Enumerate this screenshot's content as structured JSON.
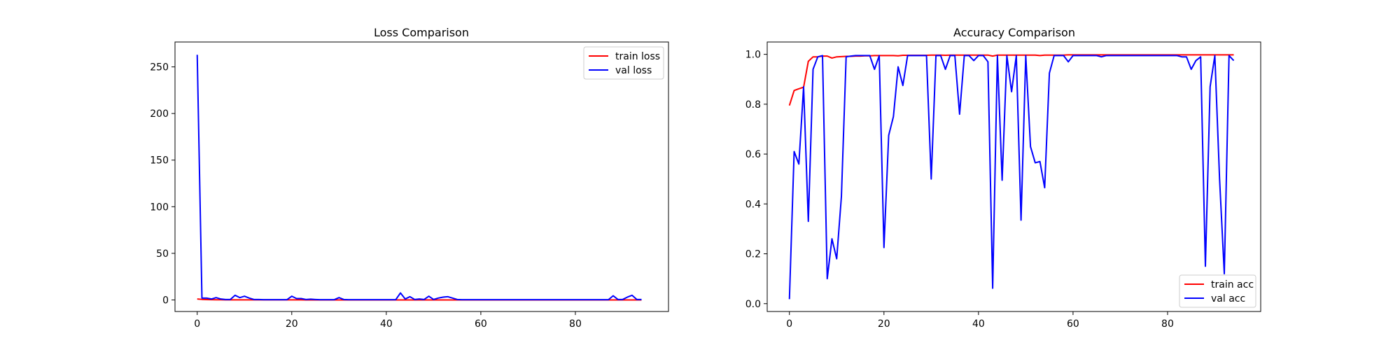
{
  "chart_data": [
    {
      "type": "line",
      "title": "Loss Comparison",
      "xlabel": "",
      "ylabel": "",
      "xlim": [
        -4.7,
        99.7
      ],
      "ylim": [
        -12.4,
        276.7
      ],
      "xticks": [
        0,
        20,
        40,
        60,
        80
      ],
      "yticks": [
        0,
        50,
        100,
        150,
        200,
        250
      ],
      "grid": false,
      "legend_position": "top-right",
      "series": [
        {
          "name": "train loss",
          "color": "#ff0000",
          "x": [
            0,
            1,
            2,
            3,
            4,
            5,
            6,
            7,
            8,
            9,
            10,
            11,
            12,
            13,
            14,
            15,
            16,
            17,
            18,
            19,
            20,
            21,
            22,
            23,
            24,
            25,
            26,
            27,
            28,
            29,
            30,
            31,
            32,
            33,
            34,
            35,
            36,
            37,
            38,
            39,
            40,
            41,
            42,
            43,
            44,
            45,
            46,
            47,
            48,
            49,
            50,
            51,
            52,
            53,
            54,
            55,
            56,
            57,
            58,
            59,
            60,
            61,
            62,
            63,
            64,
            65,
            66,
            67,
            68,
            69,
            70,
            71,
            72,
            73,
            74,
            75,
            76,
            77,
            78,
            79,
            80,
            81,
            82,
            83,
            84,
            85,
            86,
            87,
            88,
            89,
            90,
            91,
            92,
            93,
            94
          ],
          "values": [
            1.0,
            0.6,
            0.4,
            0.3,
            0.2,
            0.15,
            0.1,
            0.1,
            0.1,
            0.08,
            0.08,
            0.07,
            0.06,
            0.06,
            0.05,
            0.05,
            0.05,
            0.05,
            0.04,
            0.04,
            0.04,
            0.04,
            0.04,
            0.03,
            0.03,
            0.03,
            0.03,
            0.03,
            0.03,
            0.03,
            0.03,
            0.02,
            0.02,
            0.02,
            0.02,
            0.02,
            0.02,
            0.02,
            0.02,
            0.02,
            0.02,
            0.02,
            0.02,
            0.02,
            0.02,
            0.02,
            0.02,
            0.02,
            0.02,
            0.02,
            0.02,
            0.02,
            0.02,
            0.02,
            0.02,
            0.02,
            0.02,
            0.02,
            0.02,
            0.02,
            0.01,
            0.01,
            0.01,
            0.01,
            0.01,
            0.01,
            0.01,
            0.01,
            0.01,
            0.01,
            0.01,
            0.01,
            0.01,
            0.01,
            0.01,
            0.01,
            0.01,
            0.01,
            0.01,
            0.01,
            0.01,
            0.01,
            0.01,
            0.01,
            0.01,
            0.01,
            0.01,
            0.01,
            0.01,
            0.01,
            0.01,
            0.01,
            0.01,
            0.01,
            0.01
          ]
        },
        {
          "name": "val loss",
          "color": "#0000ff",
          "x": [
            0,
            1,
            2,
            3,
            4,
            5,
            6,
            7,
            8,
            9,
            10,
            11,
            12,
            13,
            14,
            15,
            16,
            17,
            18,
            19,
            20,
            21,
            22,
            23,
            24,
            25,
            26,
            27,
            28,
            29,
            30,
            31,
            32,
            33,
            34,
            35,
            36,
            37,
            38,
            39,
            40,
            41,
            42,
            43,
            44,
            45,
            46,
            47,
            48,
            49,
            50,
            51,
            52,
            53,
            54,
            55,
            56,
            57,
            58,
            59,
            60,
            61,
            62,
            63,
            64,
            65,
            66,
            67,
            68,
            69,
            70,
            71,
            72,
            73,
            74,
            75,
            76,
            77,
            78,
            79,
            80,
            81,
            82,
            83,
            84,
            85,
            86,
            87,
            88,
            89,
            90,
            91,
            92,
            93,
            94
          ],
          "values": [
            263,
            2,
            2,
            1,
            2.5,
            1,
            0.5,
            0.5,
            5,
            2.5,
            4,
            2,
            0.5,
            0.5,
            0.3,
            0.3,
            0.3,
            0.3,
            0.3,
            0.3,
            4,
            1.5,
            1.5,
            0.5,
            0.8,
            0.5,
            0.3,
            0.3,
            0.3,
            0.3,
            2.5,
            0.5,
            0.3,
            0.3,
            0.3,
            0.3,
            0.3,
            0.3,
            0.3,
            0.3,
            0.3,
            0.3,
            0.3,
            7.5,
            1,
            3.5,
            0.5,
            1,
            0.5,
            4,
            0.5,
            2,
            3,
            3.5,
            2,
            0.5,
            0.3,
            0.3,
            0.3,
            0.3,
            0.3,
            0.3,
            0.3,
            0.3,
            0.3,
            0.3,
            0.3,
            0.3,
            0.3,
            0.3,
            0.3,
            0.3,
            0.3,
            0.3,
            0.3,
            0.3,
            0.3,
            0.3,
            0.3,
            0.3,
            0.3,
            0.3,
            0.3,
            0.3,
            0.3,
            0.3,
            0.3,
            0.3,
            4.5,
            0.5,
            0.5,
            3,
            5,
            0.5,
            0.5
          ]
        }
      ]
    },
    {
      "type": "line",
      "title": "Accuracy Comparison",
      "xlabel": "",
      "ylabel": "",
      "xlim": [
        -4.7,
        99.7
      ],
      "ylim": [
        -0.0315,
        1.0495
      ],
      "xticks": [
        0,
        20,
        40,
        60,
        80
      ],
      "yticks": [
        0.0,
        0.2,
        0.4,
        0.6,
        0.8,
        1.0
      ],
      "grid": false,
      "legend_position": "bottom-right",
      "series": [
        {
          "name": "train acc",
          "color": "#ff0000",
          "x": [
            0,
            1,
            2,
            3,
            4,
            5,
            6,
            7,
            8,
            9,
            10,
            11,
            12,
            13,
            14,
            15,
            16,
            17,
            18,
            19,
            20,
            21,
            22,
            23,
            24,
            25,
            26,
            27,
            28,
            29,
            30,
            31,
            32,
            33,
            34,
            35,
            36,
            37,
            38,
            39,
            40,
            41,
            42,
            43,
            44,
            45,
            46,
            47,
            48,
            49,
            50,
            51,
            52,
            53,
            54,
            55,
            56,
            57,
            58,
            59,
            60,
            61,
            62,
            63,
            64,
            65,
            66,
            67,
            68,
            69,
            70,
            71,
            72,
            73,
            74,
            75,
            76,
            77,
            78,
            79,
            80,
            81,
            82,
            83,
            84,
            85,
            86,
            87,
            88,
            89,
            90,
            91,
            92,
            93,
            94
          ],
          "values": [
            0.795,
            0.855,
            0.862,
            0.868,
            0.972,
            0.99,
            0.99,
            0.993,
            0.993,
            0.985,
            0.99,
            0.991,
            0.992,
            0.992,
            0.993,
            0.993,
            0.994,
            0.994,
            0.995,
            0.995,
            0.995,
            0.995,
            0.995,
            0.994,
            0.996,
            0.996,
            0.996,
            0.996,
            0.996,
            0.996,
            0.997,
            0.997,
            0.997,
            0.996,
            0.997,
            0.997,
            0.997,
            0.997,
            0.997,
            0.997,
            0.997,
            0.997,
            0.997,
            0.993,
            0.997,
            0.997,
            0.997,
            0.997,
            0.997,
            0.997,
            0.997,
            0.997,
            0.997,
            0.995,
            0.997,
            0.997,
            0.997,
            0.997,
            0.997,
            0.998,
            0.998,
            0.998,
            0.998,
            0.998,
            0.998,
            0.998,
            0.998,
            0.998,
            0.998,
            0.998,
            0.998,
            0.998,
            0.998,
            0.998,
            0.998,
            0.998,
            0.998,
            0.998,
            0.998,
            0.998,
            0.998,
            0.998,
            0.998,
            0.998,
            0.998,
            0.998,
            0.998,
            0.998,
            0.998,
            0.998,
            0.998,
            0.998,
            0.998,
            0.998,
            0.998
          ]
        },
        {
          "name": "val acc",
          "color": "#0000ff",
          "x": [
            0,
            1,
            2,
            3,
            4,
            5,
            6,
            7,
            8,
            9,
            10,
            11,
            12,
            13,
            14,
            15,
            16,
            17,
            18,
            19,
            20,
            21,
            22,
            23,
            24,
            25,
            26,
            27,
            28,
            29,
            30,
            31,
            32,
            33,
            34,
            35,
            36,
            37,
            38,
            39,
            40,
            41,
            42,
            43,
            44,
            45,
            46,
            47,
            48,
            49,
            50,
            51,
            52,
            53,
            54,
            55,
            56,
            57,
            58,
            59,
            60,
            61,
            62,
            63,
            64,
            65,
            66,
            67,
            68,
            69,
            70,
            71,
            72,
            73,
            74,
            75,
            76,
            77,
            78,
            79,
            80,
            81,
            82,
            83,
            84,
            85,
            86,
            87,
            88,
            89,
            90,
            91,
            92,
            93,
            94
          ],
          "values": [
            0.018,
            0.61,
            0.56,
            0.87,
            0.33,
            0.94,
            0.99,
            0.995,
            0.1,
            0.26,
            0.18,
            0.43,
            0.99,
            0.993,
            0.995,
            0.995,
            0.995,
            0.995,
            0.94,
            0.995,
            0.225,
            0.675,
            0.75,
            0.95,
            0.875,
            0.995,
            0.995,
            0.995,
            0.995,
            0.995,
            0.5,
            0.995,
            0.995,
            0.94,
            0.995,
            0.995,
            0.76,
            0.995,
            0.995,
            0.975,
            0.995,
            0.995,
            0.97,
            0.062,
            0.995,
            0.495,
            0.995,
            0.85,
            0.995,
            0.335,
            0.995,
            0.63,
            0.565,
            0.57,
            0.465,
            0.925,
            0.995,
            0.995,
            0.995,
            0.97,
            0.995,
            0.995,
            0.995,
            0.995,
            0.995,
            0.995,
            0.99,
            0.995,
            0.995,
            0.995,
            0.995,
            0.995,
            0.995,
            0.995,
            0.995,
            0.995,
            0.995,
            0.995,
            0.995,
            0.995,
            0.995,
            0.995,
            0.995,
            0.99,
            0.99,
            0.94,
            0.975,
            0.99,
            0.15,
            0.87,
            0.995,
            0.5,
            0.12,
            0.995,
            0.975
          ]
        }
      ]
    }
  ]
}
